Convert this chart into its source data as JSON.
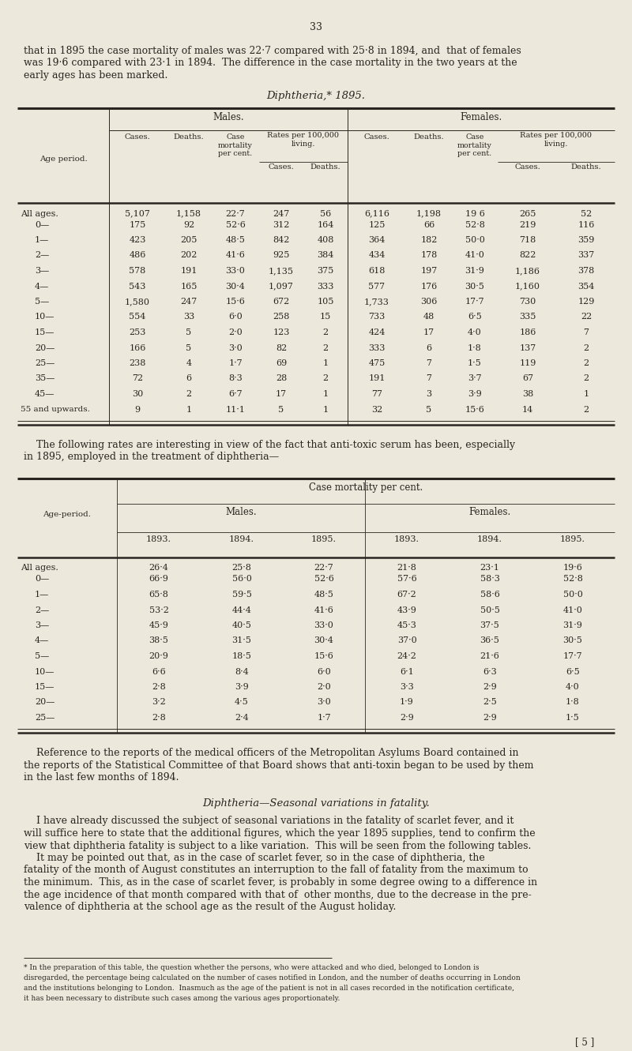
{
  "page_number": "33",
  "bg_color": "#ede8dc",
  "text_color": "#2a2520",
  "intro_text_lines": [
    "that in 1895 the case mortality of males was 22·7 compared with 25·8 in 1894, and  that of females",
    "was 19·6 compared with 23·1 in 1894.  The difference in the case mortality in the two years at the",
    "early ages has been marked."
  ],
  "table1_title": "Diphtheria,* 1895.",
  "table1_rows": [
    [
      "All ages.",
      "5,107",
      "1,158",
      "22·7",
      "247",
      "56",
      "6,116",
      "1,198",
      "19 6",
      "265",
      "52"
    ],
    [
      "0—",
      "175",
      "92",
      "52·6",
      "312",
      "164",
      "125",
      "66",
      "52·8",
      "219",
      "116"
    ],
    [
      "1—",
      "423",
      "205",
      "48·5",
      "842",
      "408",
      "364",
      "182",
      "50·0",
      "718",
      "359"
    ],
    [
      "2—",
      "486",
      "202",
      "41·6",
      "925",
      "384",
      "434",
      "178",
      "41·0",
      "822",
      "337"
    ],
    [
      "3—",
      "578",
      "191",
      "33·0",
      "1,135",
      "375",
      "618",
      "197",
      "31·9",
      "1,186",
      "378"
    ],
    [
      "4—",
      "543",
      "165",
      "30·4",
      "1,097",
      "333",
      "577",
      "176",
      "30·5",
      "1,160",
      "354"
    ],
    [
      "5—",
      "1,580",
      "247",
      "15·6",
      "672",
      "105",
      "1,733",
      "306",
      "17·7",
      "730",
      "129"
    ],
    [
      "10—",
      "554",
      "33",
      "6·0",
      "258",
      "15",
      "733",
      "48",
      "6·5",
      "335",
      "22"
    ],
    [
      "15—",
      "253",
      "5",
      "2·0",
      "123",
      "2",
      "424",
      "17",
      "4·0",
      "186",
      "7"
    ],
    [
      "20—",
      "166",
      "5",
      "3·0",
      "82",
      "2",
      "333",
      "6",
      "1·8",
      "137",
      "2"
    ],
    [
      "25—",
      "238",
      "4",
      "1·7",
      "69",
      "1",
      "475",
      "7",
      "1·5",
      "119",
      "2"
    ],
    [
      "35—",
      "72",
      "6",
      "8·3",
      "28",
      "2",
      "191",
      "7",
      "3·7",
      "67",
      "2"
    ],
    [
      "45—",
      "30",
      "2",
      "6·7",
      "17",
      "1",
      "77",
      "3",
      "3·9",
      "38",
      "1"
    ],
    [
      "55 and upwards.",
      "9",
      "1",
      "11·1",
      "5",
      "1",
      "32",
      "5",
      "15·6",
      "14",
      "2"
    ]
  ],
  "between_text_lines": [
    "    The following rates are interesting in view of the fact that anti-toxic serum has been, especially",
    "in 1895, employed in the treatment of diphtheria—"
  ],
  "table2_rows": [
    [
      "All ages.",
      "26·4",
      "25·8",
      "22·7",
      "21·8",
      "23·1",
      "19·6"
    ],
    [
      "0—",
      "66·9",
      "56·0",
      "52·6",
      "57·6",
      "58·3",
      "52·8"
    ],
    [
      "1—",
      "65·8",
      "59·5",
      "48·5",
      "67·2",
      "58·6",
      "50·0"
    ],
    [
      "2—",
      "53·2",
      "44·4",
      "41·6",
      "43·9",
      "50·5",
      "41·0"
    ],
    [
      "3—",
      "45·9",
      "40·5",
      "33·0",
      "45·3",
      "37·5",
      "31·9"
    ],
    [
      "4—",
      "38·5",
      "31·5",
      "30·4",
      "37·0",
      "36·5",
      "30·5"
    ],
    [
      "5—",
      "20·9",
      "18·5",
      "15·6",
      "24·2",
      "21·6",
      "17·7"
    ],
    [
      "10—",
      "6·6",
      "8·4",
      "6·0",
      "6·1",
      "6·3",
      "6·5"
    ],
    [
      "15—",
      "2·8",
      "3·9",
      "2·0",
      "3·3",
      "2·9",
      "4·0"
    ],
    [
      "20—",
      "3·2",
      "4·5",
      "3·0",
      "1·9",
      "2·5",
      "1·8"
    ],
    [
      "25—",
      "2·8",
      "2·4",
      "1·7",
      "2·9",
      "2·9",
      "1·5"
    ]
  ],
  "after_text1_lines": [
    "    Reference to the reports of the medical officers of the Metropolitan Asylums Board contained in",
    "the reports of the Statistical Committee of that Board shows that anti-toxin began to be used by them",
    "in the last few months of 1894."
  ],
  "section_title": "Diphtheria—Seasonal variations in fatality.",
  "after_text2_lines": [
    "    I have already discussed the subject of seasonal variations in the fatality of scarlet fever, and it",
    "will suffice here to state that the additional figures, which the year 1895 supplies, tend to confirm the",
    "view that diphtheria fatality is subject to a like variation.  This will be seen from the following tables.",
    "    It may be pointed out that, as in the case of scarlet fever, so in the case of diphtheria, the",
    "fatality of the month of August constitutes an interruption to the fall of fatality from the maximum to",
    "the minimum.  This, as in the case of scarlet fever, is probably in some degree owing to a difference in",
    "the age incidence of that month compared with that of  other months, due to the decrease in the pre-",
    "valence of diphtheria at the school age as the result of the August holiday."
  ],
  "footnote_lines": [
    "* In the preparation of this table, the question whether the persons, who were attacked and who died, belonged to London is",
    "disregarded, the percentage being calculated on the number of cases notified in London, and the number of deaths occurring in London",
    "and the institutions belonging to London.  Inasmuch as the age of the patient is not in all cases recorded in the notification certificate,",
    "it has been necessary to distribute such cases among the various ages proportionately."
  ],
  "page_num_bottom": "[ 5 ]"
}
